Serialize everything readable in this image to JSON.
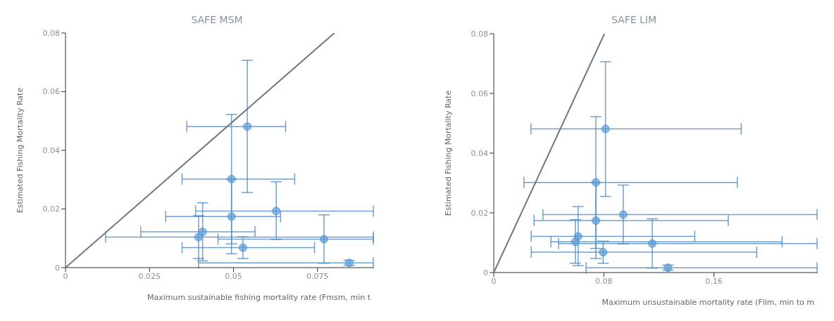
{
  "chart_data": [
    {
      "type": "scatter",
      "title": "SAFE MSM",
      "xlabel": "Maximum sustainable fishing mortality rate (Fmsm, min t",
      "ylabel": "Estimated Fishing Mortality Rate",
      "xlim": [
        0,
        0.0916
      ],
      "xticks": [
        0,
        0.025,
        0.05,
        0.075
      ],
      "ylim": [
        0,
        0.08
      ],
      "yticks": [
        0,
        0.02,
        0.04,
        0.06,
        0.08
      ],
      "series": [
        {
          "type": "line",
          "color": "#6c7a80",
          "x": [
            0,
            0.08
          ],
          "values": [
            0,
            0.08
          ]
        },
        {
          "marker": "circle",
          "color": "#5b9bd5",
          "x": [
            0.0541,
            0.0494,
            0.0494,
            0.0627,
            0.0408,
            0.0396,
            0.0769,
            0.0528,
            0.0844
          ],
          "values": [
            0.0481,
            0.0302,
            0.0174,
            0.0193,
            0.0122,
            0.0104,
            0.0097,
            0.0068,
            0.0016
          ],
          "errors": [
            [
              0.0256,
              0.0707
            ],
            [
              0.0047,
              0.0522
            ],
            [
              0.0081,
              0.0302
            ],
            [
              0.0096,
              0.0293
            ],
            [
              0.0023,
              0.0221
            ],
            [
              0.0031,
              0.0177
            ],
            [
              0.0015,
              0.018
            ],
            [
              0.0031,
              0.0105
            ],
            [
              0.0008,
              0.0025
            ]
          ],
          "xerrors": [
            [
              0.0361,
              0.0655
            ],
            [
              0.0347,
              0.0682
            ],
            [
              0.0298,
              0.064
            ],
            [
              0.0387,
              0.0916
            ],
            [
              0.0224,
              0.0564
            ],
            [
              0.0119,
              0.0916
            ],
            [
              0.0454,
              0.0916
            ],
            [
              0.0347,
              0.0741
            ],
            [
              0.0396,
              0.0916
            ]
          ]
        }
      ]
    },
    {
      "type": "scatter",
      "title": "SAFE LIM",
      "xlabel": "Maximum unsustainable mortality rate (Flim, min to m",
      "ylabel": "Estimated Fishing Mortality Rate",
      "xlim": [
        0,
        0.235
      ],
      "xticks": [
        0,
        0.08,
        0.16
      ],
      "ylim": [
        0,
        0.08
      ],
      "yticks": [
        0,
        0.02,
        0.04,
        0.06,
        0.08
      ],
      "series": [
        {
          "type": "line",
          "color": "#6c7a80",
          "x": [
            0,
            0.0804
          ],
          "values": [
            0,
            0.08
          ]
        },
        {
          "marker": "circle",
          "color": "#5b9bd5",
          "x": [
            0.0812,
            0.0742,
            0.0742,
            0.0941,
            0.0613,
            0.0593,
            0.1152,
            0.0795,
            0.1266
          ],
          "values": [
            0.0481,
            0.0302,
            0.0174,
            0.0194,
            0.0121,
            0.0103,
            0.0097,
            0.0068,
            0.0016
          ],
          "errors": [
            [
              0.0255,
              0.0706
            ],
            [
              0.0047,
              0.0522
            ],
            [
              0.0081,
              0.0302
            ],
            [
              0.0096,
              0.0293
            ],
            [
              0.0023,
              0.0221
            ],
            [
              0.0031,
              0.0177
            ],
            [
              0.0015,
              0.018
            ],
            [
              0.0031,
              0.0105
            ],
            [
              0.0008,
              0.0025
            ]
          ],
          "xerrors": [
            [
              0.027,
              0.1798
            ],
            [
              0.0219,
              0.177
            ],
            [
              0.0293,
              0.1704
            ],
            [
              0.0357,
              0.235
            ],
            [
              0.0272,
              0.1461
            ],
            [
              0.0415,
              0.2096
            ],
            [
              0.047,
              0.235
            ],
            [
              0.0272,
              0.1911
            ],
            [
              0.0671,
              0.235
            ]
          ]
        }
      ]
    }
  ]
}
